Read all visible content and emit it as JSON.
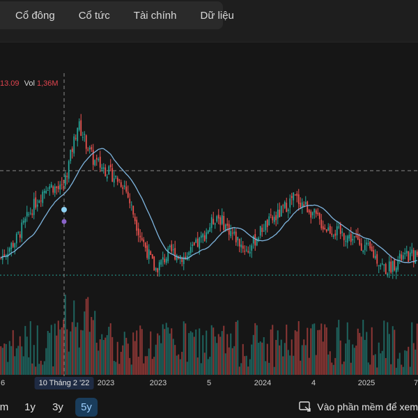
{
  "nav": {
    "tabs": [
      "Cổ đông",
      "Cổ tức",
      "Tài chính",
      "Dữ liệu"
    ]
  },
  "legend": {
    "close_value": "13.09",
    "vol_label": "Vol",
    "vol_value": "1,36M"
  },
  "crosshair": {
    "date_label": "10 Tháng 2 '22"
  },
  "bottom": {
    "ranges": [
      "m",
      "1y",
      "3y",
      "5y"
    ],
    "active_range": "5y",
    "open_app_label": "Vào phần mềm để xem"
  },
  "colors": {
    "up": "#26a69a",
    "down": "#ef5350",
    "ma_line": "#7fb6e0",
    "background": "#161616"
  },
  "chart_data": {
    "type": "candlestick",
    "x_axis_ticks": [
      "6",
      "2023",
      "5",
      "2024",
      "4",
      "2025",
      "7"
    ],
    "price_series": {
      "dates": [
        "2021-06",
        "2021-08",
        "2021-10",
        "2021-12",
        "2022-02",
        "2022-03",
        "2022-04",
        "2022-05",
        "2022-06",
        "2022-08",
        "2022-10",
        "2022-12",
        "2023-02",
        "2023-04",
        "2023-06",
        "2023-08",
        "2023-10",
        "2023-12",
        "2024-02",
        "2024-04",
        "2024-06",
        "2024-08",
        "2024-10",
        "2024-12",
        "2025-02",
        "2025-04",
        "2025-06",
        "2025-07"
      ],
      "close": [
        9.0,
        10.5,
        13.0,
        15.0,
        14.5,
        20.0,
        17.0,
        16.0,
        15.0,
        11.0,
        8.0,
        9.5,
        9.0,
        10.5,
        12.5,
        11.0,
        9.5,
        11.5,
        12.5,
        14.0,
        13.0,
        11.5,
        11.0,
        10.5,
        9.5,
        8.0,
        9.0,
        9.2
      ]
    },
    "volume_series": {
      "note_unit": "shares",
      "relative": true
    },
    "indicators": [
      "moving average"
    ]
  }
}
